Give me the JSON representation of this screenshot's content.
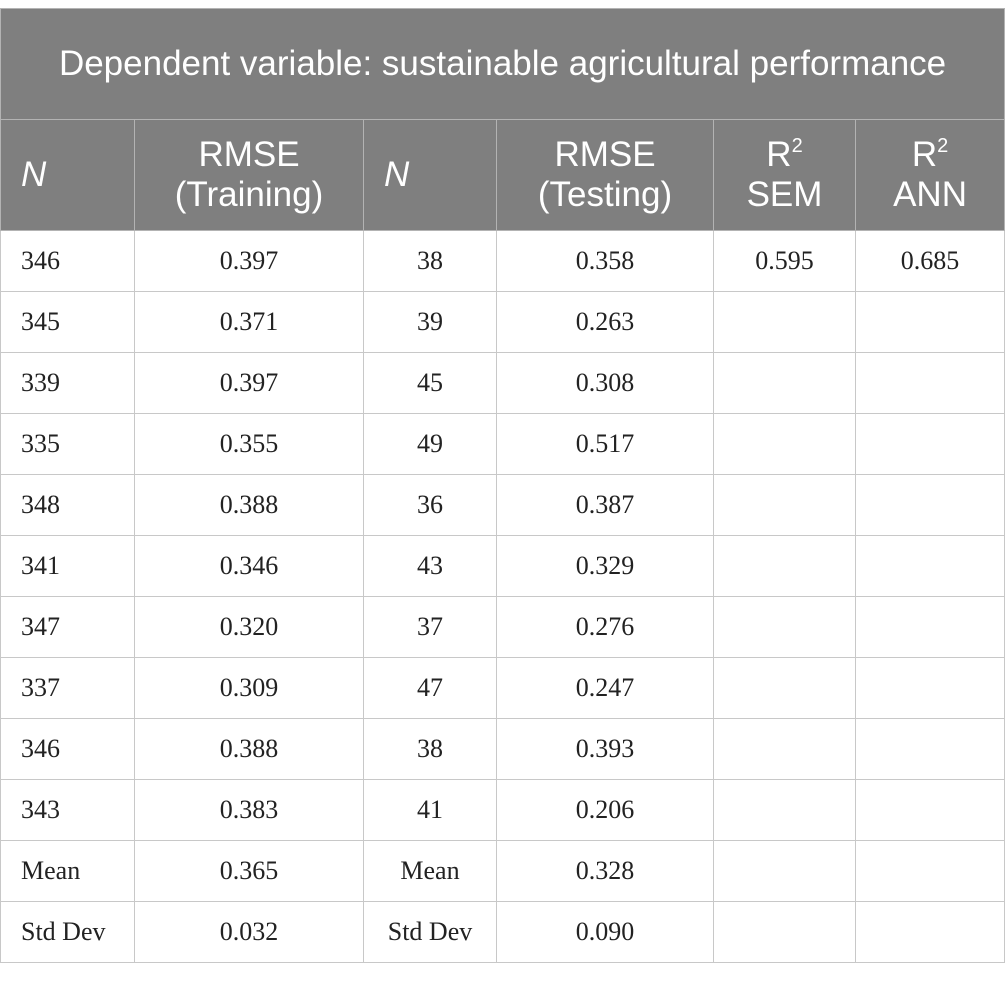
{
  "title": "Dependent variable: sustainable agricultural performance",
  "headers": {
    "n_train": "N",
    "rmse_train_line1": "RMSE",
    "rmse_train_line2": "(Training)",
    "n_test": "N",
    "rmse_test_line1": "RMSE",
    "rmse_test_line2": "(Testing)",
    "r2_sem_base": "R",
    "r2_sem_sup": "2",
    "r2_sem_label": "SEM",
    "r2_ann_base": "R",
    "r2_ann_sup": "2",
    "r2_ann_label": "ANN"
  },
  "rows": [
    {
      "n_train": "346",
      "rmse_train": "0.397",
      "n_test": "38",
      "rmse_test": "0.358",
      "r2_sem": "0.595",
      "r2_ann": "0.685"
    },
    {
      "n_train": "345",
      "rmse_train": "0.371",
      "n_test": "39",
      "rmse_test": "0.263",
      "r2_sem": "",
      "r2_ann": ""
    },
    {
      "n_train": "339",
      "rmse_train": "0.397",
      "n_test": "45",
      "rmse_test": "0.308",
      "r2_sem": "",
      "r2_ann": ""
    },
    {
      "n_train": "335",
      "rmse_train": "0.355",
      "n_test": "49",
      "rmse_test": "0.517",
      "r2_sem": "",
      "r2_ann": ""
    },
    {
      "n_train": "348",
      "rmse_train": "0.388",
      "n_test": "36",
      "rmse_test": "0.387",
      "r2_sem": "",
      "r2_ann": ""
    },
    {
      "n_train": "341",
      "rmse_train": "0.346",
      "n_test": "43",
      "rmse_test": "0.329",
      "r2_sem": "",
      "r2_ann": ""
    },
    {
      "n_train": "347",
      "rmse_train": "0.320",
      "n_test": "37",
      "rmse_test": "0.276",
      "r2_sem": "",
      "r2_ann": ""
    },
    {
      "n_train": "337",
      "rmse_train": "0.309",
      "n_test": "47",
      "rmse_test": "0.247",
      "r2_sem": "",
      "r2_ann": ""
    },
    {
      "n_train": "346",
      "rmse_train": "0.388",
      "n_test": "38",
      "rmse_test": "0.393",
      "r2_sem": "",
      "r2_ann": ""
    },
    {
      "n_train": "343",
      "rmse_train": "0.383",
      "n_test": "41",
      "rmse_test": "0.206",
      "r2_sem": "",
      "r2_ann": ""
    },
    {
      "n_train": "Mean",
      "rmse_train": "0.365",
      "n_test": "Mean",
      "rmse_test": "0.328",
      "r2_sem": "",
      "r2_ann": ""
    },
    {
      "n_train": "Std Dev",
      "rmse_train": "0.032",
      "n_test": "Std Dev",
      "rmse_test": "0.090",
      "r2_sem": "",
      "r2_ann": ""
    }
  ]
}
